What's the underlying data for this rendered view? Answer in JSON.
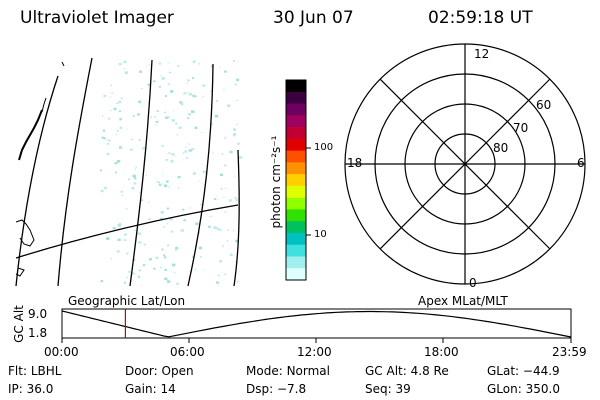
{
  "header": {
    "instrument": "Ultraviolet Imager",
    "date": "30 Jun 07",
    "time": "02:59:18 UT"
  },
  "colorbar": {
    "label": "photon cm⁻²s⁻¹",
    "ticks": [
      "100",
      "10"
    ],
    "colors": [
      "#000000",
      "#3a0040",
      "#700060",
      "#a00060",
      "#c00030",
      "#e00000",
      "#ff5000",
      "#ff9000",
      "#ffd000",
      "#e0ff00",
      "#90ff00",
      "#30e000",
      "#00c060",
      "#00c0c0",
      "#40e0e0",
      "#a0f0f0",
      "#e0ffff"
    ]
  },
  "polar": {
    "labels": {
      "top": "12",
      "left": "18",
      "right": "6",
      "bottom": "0"
    },
    "lat_labels": [
      "60",
      "70",
      "80"
    ]
  },
  "timeline": {
    "y_axis_label": "GC Alt",
    "y_ticks": [
      "9.0",
      "1.8"
    ],
    "left_title": "Geographic Lat/Lon",
    "right_title": "Apex MLat/MLT",
    "x_ticks": [
      "00:00",
      "06:00",
      "12:00",
      "18:00",
      "23:59"
    ],
    "marker_color": "#cc0000",
    "marker_time_hours": 2.99
  },
  "info": {
    "row1": [
      {
        "label": "Flt:",
        "value": "LBHL"
      },
      {
        "label": "Door:",
        "value": "Open"
      },
      {
        "label": "Mode:",
        "value": "Normal"
      },
      {
        "label": "GC Alt:",
        "value": "4.8 Re"
      },
      {
        "label": "GLat:",
        "value": "−44.9"
      }
    ],
    "row2": [
      {
        "label": "IP:",
        "value": "36.0"
      },
      {
        "label": "Gain:",
        "value": "14"
      },
      {
        "label": "Dsp:",
        "value": "−7.8"
      },
      {
        "label": "Seq:",
        "value": "39"
      },
      {
        "label": "GLon:",
        "value": "350.0"
      }
    ]
  }
}
